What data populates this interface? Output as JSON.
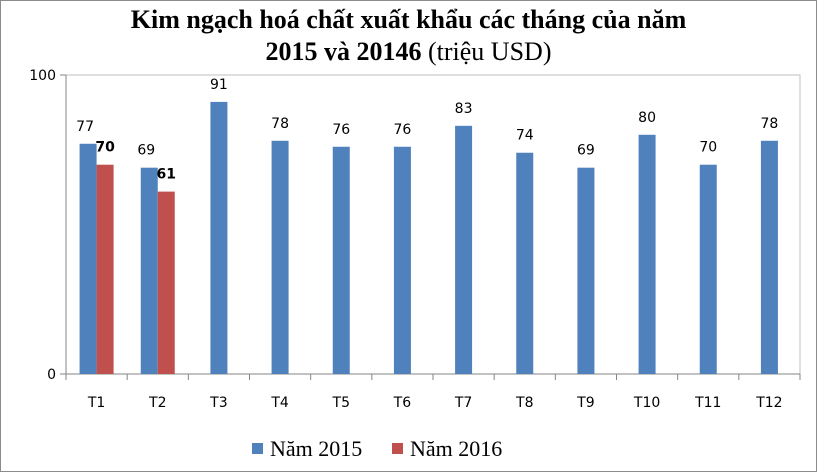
{
  "chart_data": {
    "type": "bar",
    "title_line1": "Kim ngạch hoá chất xuất khẩu các tháng của năm",
    "title_line2_bold": "2015 và 20146",
    "title_line2_rest": " (triệu USD)",
    "categories": [
      "T1",
      "T2",
      "T3",
      "T4",
      "T5",
      "T6",
      "T7",
      "T8",
      "T9",
      "T10",
      "T11",
      "T12"
    ],
    "series": [
      {
        "name": "Năm 2015",
        "color": "#4f81bd",
        "values": [
          77,
          69,
          91,
          78,
          76,
          76,
          83,
          74,
          69,
          80,
          70,
          78
        ]
      },
      {
        "name": "Năm 2016",
        "color": "#c0504d",
        "values": [
          70,
          61,
          null,
          null,
          null,
          null,
          null,
          null,
          null,
          null,
          null,
          null
        ]
      }
    ],
    "ylim": [
      0,
      100
    ],
    "yticks": [
      0,
      100
    ],
    "grid": false,
    "legend_position": "bottom"
  }
}
